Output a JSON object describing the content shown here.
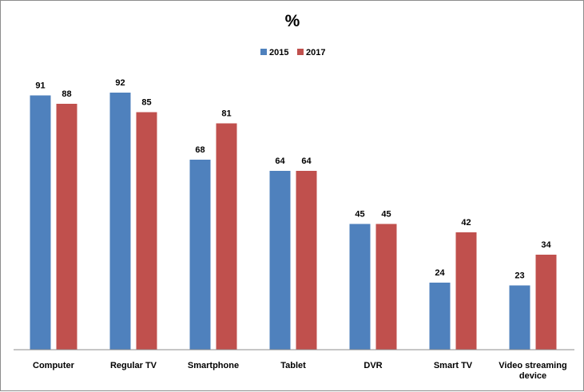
{
  "chart_data": {
    "type": "bar",
    "title": "%",
    "categories": [
      [
        "Computer"
      ],
      [
        "Regular TV"
      ],
      [
        "Smartphone"
      ],
      [
        "Tablet"
      ],
      [
        "DVR"
      ],
      [
        "Smart TV"
      ],
      [
        "Video streaming",
        "device"
      ]
    ],
    "series": [
      {
        "name": "2015",
        "color": "#4f81bd",
        "values": [
          91,
          92,
          68,
          64,
          45,
          24,
          23
        ]
      },
      {
        "name": "2017",
        "color": "#c0504d",
        "values": [
          88,
          85,
          81,
          64,
          45,
          42,
          34
        ]
      }
    ],
    "ylim": [
      0,
      100
    ],
    "grid": false,
    "legend_position": "top-center",
    "xlabel": "",
    "ylabel": ""
  }
}
